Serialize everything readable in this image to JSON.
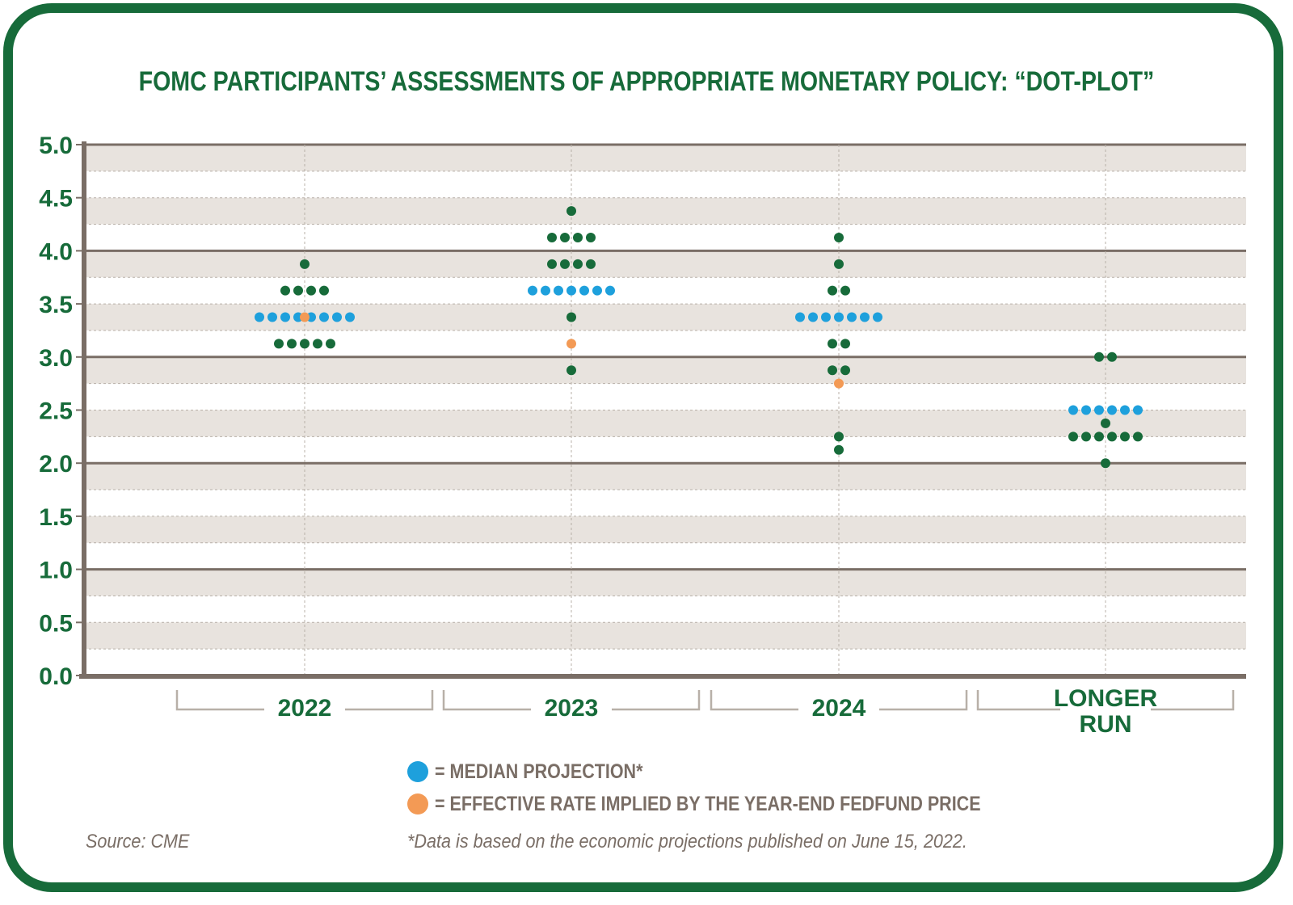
{
  "chart_data": {
    "type": "scatter",
    "title": "FOMC PARTICIPANTS’ ASSESSMENTS OF APPROPRIATE MONETARY POLICY: “DOT-PLOT”",
    "xlabel": "",
    "ylabel": "",
    "ylim": [
      0,
      5
    ],
    "yticks": [
      "0.0",
      "0.5",
      "1.0",
      "1.5",
      "2.0",
      "2.5",
      "3.0",
      "3.5",
      "4.0",
      "4.5",
      "5.0"
    ],
    "categories": [
      {
        "label_lines": [
          "2022"
        ]
      },
      {
        "label_lines": [
          "2023"
        ]
      },
      {
        "label_lines": [
          "2024"
        ]
      },
      {
        "label_lines": [
          "LONGER",
          "RUN"
        ]
      }
    ],
    "dots": [
      [
        {
          "value": 3.875,
          "count": 1,
          "kind": "participant"
        },
        {
          "value": 3.625,
          "count": 4,
          "kind": "participant"
        },
        {
          "value": 3.375,
          "count": 8,
          "kind": "median"
        },
        {
          "value": 3.125,
          "count": 5,
          "kind": "participant"
        }
      ],
      [
        {
          "value": 4.375,
          "count": 1,
          "kind": "participant"
        },
        {
          "value": 4.125,
          "count": 4,
          "kind": "participant"
        },
        {
          "value": 3.875,
          "count": 4,
          "kind": "participant"
        },
        {
          "value": 3.625,
          "count": 7,
          "kind": "median"
        },
        {
          "value": 3.375,
          "count": 1,
          "kind": "participant"
        },
        {
          "value": 2.875,
          "count": 1,
          "kind": "participant"
        }
      ],
      [
        {
          "value": 4.125,
          "count": 1,
          "kind": "participant"
        },
        {
          "value": 3.875,
          "count": 1,
          "kind": "participant"
        },
        {
          "value": 3.625,
          "count": 2,
          "kind": "participant"
        },
        {
          "value": 3.375,
          "count": 7,
          "kind": "median"
        },
        {
          "value": 3.125,
          "count": 2,
          "kind": "participant"
        },
        {
          "value": 2.875,
          "count": 2,
          "kind": "participant"
        },
        {
          "value": 2.25,
          "count": 1,
          "kind": "participant"
        },
        {
          "value": 2.125,
          "count": 1,
          "kind": "participant"
        }
      ],
      [
        {
          "value": 3.0,
          "count": 2,
          "kind": "participant"
        },
        {
          "value": 2.5,
          "count": 6,
          "kind": "median"
        },
        {
          "value": 2.375,
          "count": 1,
          "kind": "participant"
        },
        {
          "value": 2.25,
          "count": 6,
          "kind": "participant"
        },
        {
          "value": 2.0,
          "count": 1,
          "kind": "participant"
        }
      ]
    ],
    "implied_rate": [
      3.375,
      3.125,
      2.75,
      null
    ],
    "colors": {
      "participant": "#176b3a",
      "median": "#1ea0dc",
      "implied": "#f39a55",
      "band": "#e8e3de",
      "axis": "#7a6e66",
      "text": "#176b3a"
    },
    "legend": [
      {
        "label": "= MEDIAN PROJECTION*",
        "color": "#1ea0dc"
      },
      {
        "label": "= EFFECTIVE RATE IMPLIED BY THE YEAR-END FEDFUND PRICE",
        "color": "#f39a55"
      }
    ]
  },
  "footer": {
    "source": "Source: CME",
    "note": "*Data is based on the economic projections published on June 15, 2022."
  }
}
